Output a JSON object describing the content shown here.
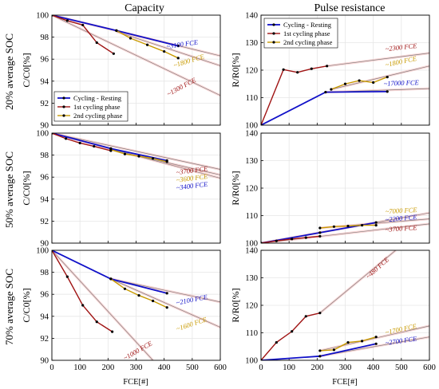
{
  "titles": {
    "left": "Capacity",
    "right": "Pulse resistance"
  },
  "row_labels": [
    "20% average SOC",
    "50% average SOC",
    "70% average SOC"
  ],
  "xlabel": "FCE[#]",
  "x_ticks": [
    "0",
    "100",
    "200",
    "300",
    "400",
    "500",
    "600"
  ],
  "colors": {
    "cycling_resting": "#1010c8",
    "first_phase": "#a01414",
    "second_phase": "#c89a00",
    "marker": "#000000",
    "extrapolation": "#808080",
    "highlight": "#f4a6a6"
  },
  "legend": {
    "cycling_resting": "Cycling - Resting",
    "first_phase": "1st cycling phase",
    "second_phase": "2nd cycling phase"
  },
  "chart_data": [
    {
      "type": "line",
      "panel": "capacity-20",
      "ylabel": "C/C0[%]",
      "xlim": [
        0,
        600
      ],
      "ylim": [
        90,
        100
      ],
      "y_ticks": [
        "90",
        "92",
        "94",
        "96",
        "98",
        "100"
      ],
      "grid": true,
      "legend_position": "bottom-left",
      "series": [
        {
          "name": "Cycling - Resting",
          "key": "cycling_resting",
          "x": [
            0,
            230,
            450
          ],
          "y": [
            100,
            98.6,
            97.2
          ]
        },
        {
          "name": "1st cycling phase",
          "key": "first_phase",
          "x": [
            0,
            55,
            110,
            160,
            220
          ],
          "y": [
            100,
            99.5,
            99.1,
            97.5,
            96.5
          ]
        },
        {
          "name": "2nd cycling phase",
          "key": "second_phase",
          "x": [
            230,
            280,
            340,
            400,
            450
          ],
          "y": [
            98.6,
            97.9,
            97.3,
            96.7,
            96.1
          ]
        }
      ],
      "extrapolations": [
        {
          "x": [
            0,
            600
          ],
          "y": [
            100,
            96.3
          ]
        },
        {
          "x": [
            230,
            600
          ],
          "y": [
            98.5,
            95.4
          ]
        },
        {
          "x": [
            0,
            600
          ],
          "y": [
            100,
            92.7
          ]
        }
      ],
      "annotations": [
        {
          "text": "~3100 FCE",
          "key": "cycling_resting",
          "x": 465,
          "y": 97.15,
          "rotate": -8
        },
        {
          "text": "~1800 FCE",
          "key": "second_phase",
          "x": 490,
          "y": 95.65,
          "rotate": -17
        },
        {
          "text": "~1300 FCE",
          "key": "first_phase",
          "x": 465,
          "y": 93.3,
          "rotate": -28
        }
      ]
    },
    {
      "type": "line",
      "panel": "capacity-50",
      "ylabel": "C/C0[%]",
      "xlim": [
        0,
        600
      ],
      "ylim": [
        90,
        100
      ],
      "y_ticks": [
        "90",
        "92",
        "94",
        "96",
        "98",
        "100"
      ],
      "grid": true,
      "series": [
        {
          "name": "Cycling - Resting",
          "key": "cycling_resting",
          "x": [
            0,
            210,
            410
          ],
          "y": [
            100,
            98.6,
            97.5
          ]
        },
        {
          "name": "1st cycling phase",
          "key": "first_phase",
          "x": [
            0,
            50,
            100,
            150,
            210
          ],
          "y": [
            100,
            99.5,
            99.1,
            98.8,
            98.4
          ]
        },
        {
          "name": "2nd cycling phase",
          "key": "second_phase",
          "x": [
            210,
            260,
            310,
            360,
            410
          ],
          "y": [
            98.5,
            98.1,
            97.9,
            97.7,
            97.4
          ]
        }
      ],
      "extrapolations": [
        {
          "x": [
            0,
            600
          ],
          "y": [
            100,
            96.7
          ]
        },
        {
          "x": [
            210,
            600
          ],
          "y": [
            98.5,
            96.2
          ]
        },
        {
          "x": [
            0,
            600
          ],
          "y": [
            100,
            95.9
          ]
        }
      ],
      "annotations": [
        {
          "text": "~3700 FCE",
          "key": "first_phase",
          "x": 500,
          "y": 96.4,
          "rotate": -7
        },
        {
          "text": "~3600 FCE",
          "key": "second_phase",
          "x": 500,
          "y": 95.7,
          "rotate": -7
        },
        {
          "text": "~3400 FCE",
          "key": "cycling_resting",
          "x": 500,
          "y": 95.0,
          "rotate": -7
        }
      ]
    },
    {
      "type": "line",
      "panel": "capacity-70",
      "ylabel": "C/C0[%]",
      "xlim": [
        0,
        600
      ],
      "ylim": [
        90,
        100
      ],
      "y_ticks": [
        "90",
        "92",
        "94",
        "96",
        "98",
        "100"
      ],
      "grid": true,
      "series": [
        {
          "name": "Cycling - Resting",
          "key": "cycling_resting",
          "x": [
            0,
            210,
            410
          ],
          "y": [
            100,
            97.4,
            96.1
          ]
        },
        {
          "name": "1st cycling phase",
          "key": "first_phase",
          "x": [
            0,
            55,
            110,
            160,
            215
          ],
          "y": [
            100,
            97.6,
            95.0,
            93.5,
            92.6
          ]
        },
        {
          "name": "2nd cycling phase",
          "key": "second_phase",
          "x": [
            210,
            260,
            310,
            360,
            410
          ],
          "y": [
            97.4,
            96.5,
            95.9,
            95.4,
            94.8
          ]
        }
      ],
      "extrapolations": [
        {
          "x": [
            210,
            600
          ],
          "y": [
            97.4,
            95.3
          ]
        },
        {
          "x": [
            210,
            600
          ],
          "y": [
            97.4,
            93.0
          ]
        },
        {
          "x": [
            0,
            360
          ],
          "y": [
            100,
            90
          ]
        }
      ],
      "annotations": [
        {
          "text": "~2100 FCE",
          "key": "cycling_resting",
          "x": 500,
          "y": 95.3,
          "rotate": -11
        },
        {
          "text": "~1600 FCE",
          "key": "second_phase",
          "x": 500,
          "y": 93.1,
          "rotate": -18
        },
        {
          "text": "~1000 FCE",
          "key": "first_phase",
          "x": 310,
          "y": 90.7,
          "rotate": -30
        }
      ]
    },
    {
      "type": "line",
      "panel": "resistance-20",
      "ylabel": "R/R0[%]",
      "xlim": [
        0,
        600
      ],
      "ylim": [
        100,
        140
      ],
      "y_ticks": [
        "100",
        "110",
        "120",
        "130",
        "140"
      ],
      "grid": true,
      "legend_position": "top-left",
      "series": [
        {
          "name": "Cycling - Resting",
          "key": "cycling_resting",
          "x": [
            0,
            230,
            450
          ],
          "y": [
            100,
            112,
            112.2
          ]
        },
        {
          "name": "1st cycling phase",
          "key": "first_phase",
          "x": [
            0,
            80,
            130,
            180,
            235
          ],
          "y": [
            100,
            120.2,
            119.2,
            120.5,
            121.5
          ]
        },
        {
          "name": "2nd cycling phase",
          "key": "second_phase",
          "x": [
            250,
            300,
            350,
            400,
            450
          ],
          "y": [
            113,
            115,
            116.2,
            115.5,
            117.5
          ]
        }
      ],
      "extrapolations": [
        {
          "x": [
            235,
            600
          ],
          "y": [
            121.5,
            126.2
          ]
        },
        {
          "x": [
            250,
            600
          ],
          "y": [
            113,
            121.5
          ]
        },
        {
          "x": [
            230,
            600
          ],
          "y": [
            112,
            113.3
          ]
        }
      ],
      "annotations": [
        {
          "text": "~2300 FCE",
          "key": "first_phase",
          "x": 500,
          "y": 127.5,
          "rotate": -6
        },
        {
          "text": "~1800 FCE",
          "key": "second_phase",
          "x": 500,
          "y": 122.3,
          "rotate": -12
        },
        {
          "text": "~17000 FCE",
          "key": "cycling_resting",
          "x": 500,
          "y": 114.5,
          "rotate": -2
        }
      ]
    },
    {
      "type": "line",
      "panel": "resistance-50",
      "ylabel": "R/R0[%]",
      "xlim": [
        0,
        600
      ],
      "ylim": [
        100,
        140
      ],
      "y_ticks": [
        "100",
        "110",
        "120",
        "130",
        "140"
      ],
      "grid": true,
      "series": [
        {
          "name": "Cycling - Resting",
          "key": "cycling_resting",
          "x": [
            0,
            210,
            410
          ],
          "y": [
            100,
            103.8,
            107.5
          ]
        },
        {
          "name": "1st cycling phase",
          "key": "first_phase",
          "x": [
            0,
            55,
            110,
            160,
            210
          ],
          "y": [
            100,
            100.8,
            101.5,
            102.0,
            102.5
          ]
        },
        {
          "name": "2nd cycling phase",
          "key": "second_phase",
          "x": [
            210,
            260,
            310,
            360,
            410
          ],
          "y": [
            105.5,
            106.0,
            106.2,
            106.5,
            106.5
          ]
        }
      ],
      "extrapolations": [
        {
          "x": [
            210,
            600
          ],
          "y": [
            105.5,
            108.8
          ]
        },
        {
          "x": [
            0,
            600
          ],
          "y": [
            100,
            111.0
          ]
        },
        {
          "x": [
            0,
            600
          ],
          "y": [
            100,
            107.0
          ]
        }
      ],
      "annotations": [
        {
          "text": "~7000 FCE",
          "key": "second_phase",
          "x": 500,
          "y": 111.0,
          "rotate": -3
        },
        {
          "text": "~2200 FCE",
          "key": "cycling_resting",
          "x": 500,
          "y": 108.2,
          "rotate": -5
        },
        {
          "text": "~3700 FCE",
          "key": "first_phase",
          "x": 500,
          "y": 104.5,
          "rotate": -4
        }
      ]
    },
    {
      "type": "line",
      "panel": "resistance-70",
      "ylabel": "R/R0[%]",
      "xlim": [
        0,
        600
      ],
      "ylim": [
        100,
        140
      ],
      "y_ticks": [
        "100",
        "110",
        "120",
        "130",
        "140"
      ],
      "grid": true,
      "series": [
        {
          "name": "Cycling - Resting",
          "key": "cycling_resting",
          "x": [
            0,
            210,
            410
          ],
          "y": [
            100,
            101.5,
            106
          ]
        },
        {
          "name": "1st cycling phase",
          "key": "first_phase",
          "x": [
            0,
            55,
            110,
            160,
            210
          ],
          "y": [
            100,
            106.5,
            110.5,
            116,
            117.2
          ]
        },
        {
          "name": "2nd cycling phase",
          "key": "second_phase",
          "x": [
            210,
            260,
            310,
            360,
            410
          ],
          "y": [
            103.5,
            103.8,
            106.5,
            107,
            108.5
          ]
        }
      ],
      "extrapolations": [
        {
          "x": [
            210,
            480
          ],
          "y": [
            117.2,
            140
          ]
        },
        {
          "x": [
            210,
            600
          ],
          "y": [
            103.5,
            112.5
          ]
        },
        {
          "x": [
            210,
            600
          ],
          "y": [
            101.5,
            108.5
          ]
        }
      ],
      "annotations": [
        {
          "text": "~480 FCE",
          "key": "first_phase",
          "x": 420,
          "y": 133,
          "rotate": -42
        },
        {
          "text": "~1700 FCE",
          "key": "second_phase",
          "x": 500,
          "y": 110.5,
          "rotate": -12
        },
        {
          "text": "~2700 FCE",
          "key": "cycling_resting",
          "x": 500,
          "y": 106.3,
          "rotate": -8
        }
      ]
    }
  ]
}
